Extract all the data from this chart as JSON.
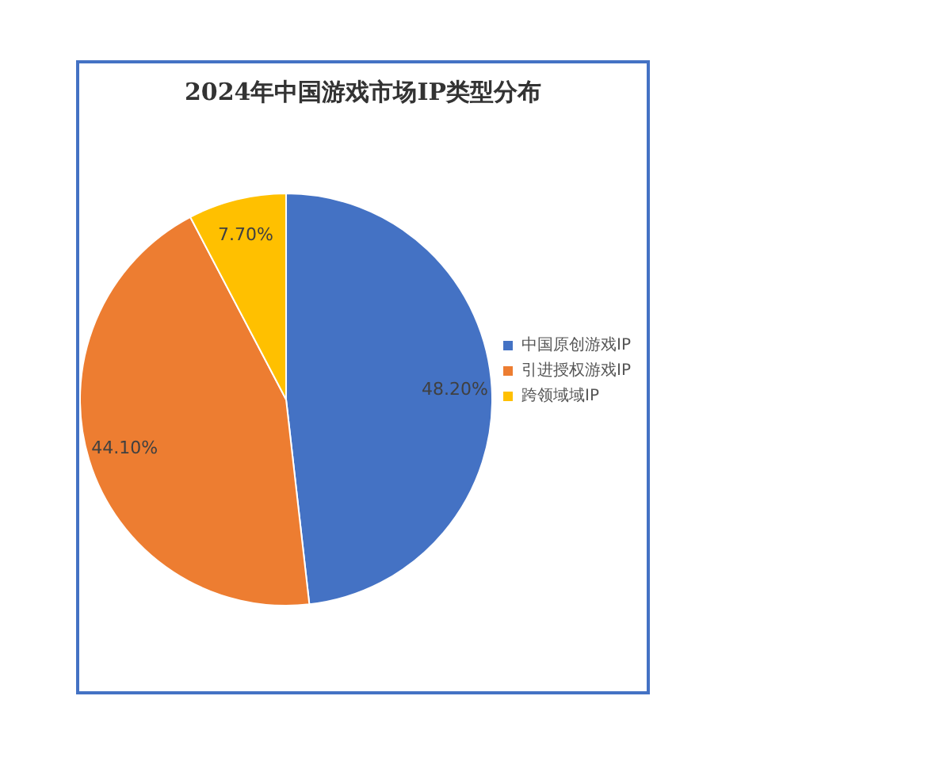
{
  "chart_data": {
    "type": "pie",
    "title": "2024年中国游戏市场IP类型分布",
    "categories": [
      "中国原创游戏IP",
      "引进授权游戏IP",
      "跨领域域IP"
    ],
    "values": [
      48.2,
      44.1,
      7.7
    ],
    "colors": [
      "#4472c4",
      "#ed7d31",
      "#ffc000"
    ],
    "value_labels": [
      "48.20%",
      "44.10%",
      "7.70%"
    ],
    "legend": "right"
  }
}
